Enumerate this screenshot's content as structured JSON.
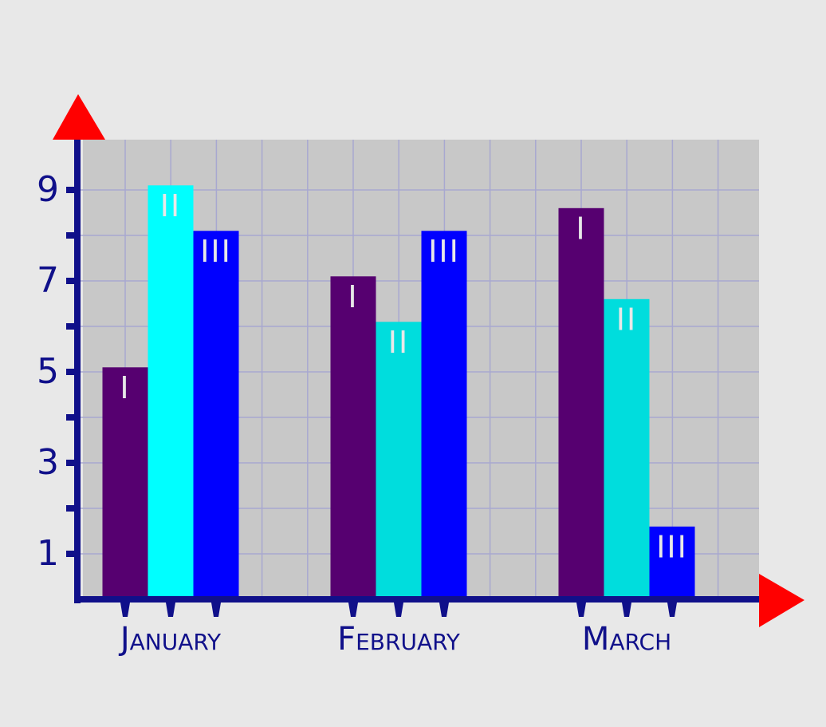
{
  "chart_data": {
    "type": "bar",
    "categories": [
      "January",
      "February",
      "March"
    ],
    "series": [
      {
        "name": "I",
        "color": "#560070",
        "values": [
          5.1,
          7.1,
          8.6
        ]
      },
      {
        "name": "II",
        "color": "#00dddd",
        "colors": [
          "#00ffff",
          "#00dddd",
          "#00dddd"
        ],
        "values": [
          9.1,
          6.1,
          6.6
        ]
      },
      {
        "name": "III",
        "color": "#0000ff",
        "values": [
          8.1,
          8.1,
          1.6
        ]
      }
    ],
    "ylim": [
      0,
      10
    ],
    "yticks": [
      1,
      3,
      5,
      7,
      9
    ],
    "yminor_ticks": [
      2,
      4,
      6,
      8
    ],
    "grid": true,
    "axis_color": "#10108a",
    "arrow_color": "#ff0000",
    "plot_color": "#c8c8c8"
  }
}
